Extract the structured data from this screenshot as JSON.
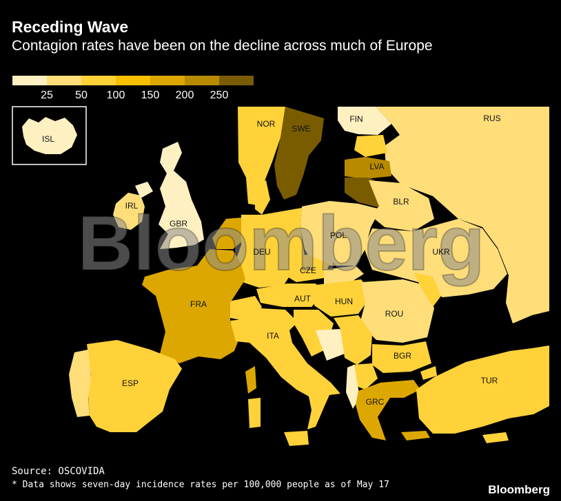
{
  "title": "Receding Wave",
  "subtitle": "Contagion rates have been on the decline across much of Europe",
  "legend": {
    "ticks": [
      "25",
      "50",
      "100",
      "150",
      "200",
      "250"
    ],
    "colors": [
      "#fff0c2",
      "#ffde7a",
      "#ffd23a",
      "#f8c000",
      "#dca700",
      "#b88a00",
      "#7a5c00"
    ]
  },
  "countries": {
    "ISL": "ISL",
    "NOR": "NOR",
    "SWE": "SWE",
    "FIN": "FIN",
    "RUS": "RUS",
    "LVA": "LVA",
    "IRL": "IRL",
    "GBR": "GBR",
    "BLR": "BLR",
    "POL": "POL",
    "DEU": "DEU",
    "UKR": "UKR",
    "CZE": "CZE",
    "FRA": "FRA",
    "AUT": "AUT",
    "HUN": "HUN",
    "ROU": "ROU",
    "ITA": "ITA",
    "BGR": "BGR",
    "ESP": "ESP",
    "TUR": "TUR",
    "GRC": "GRC"
  },
  "watermark": "Bloomberg",
  "source": "Source: OSCOVIDA",
  "note": "* Data shows seven-day incidence rates per 100,000 people as of May 17",
  "brand": "Bloomberg"
}
